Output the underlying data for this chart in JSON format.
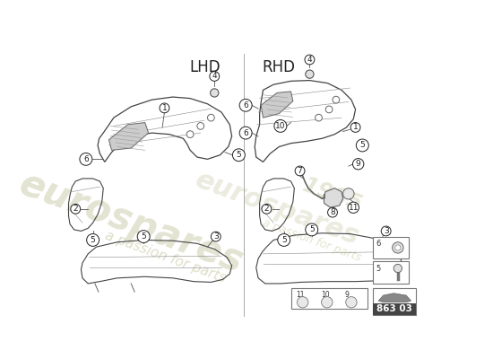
{
  "background_color": "#ffffff",
  "page_label": "863 03",
  "lhd_label": "LHD",
  "rhd_label": "RHD",
  "divider_color": "#aaaaaa",
  "line_color": "#555555",
  "part_outline_color": "#555555",
  "label_color": "#222222",
  "watermark_color_euro": "#d8d8c0",
  "watermark_color_text": "#d0d0b0"
}
